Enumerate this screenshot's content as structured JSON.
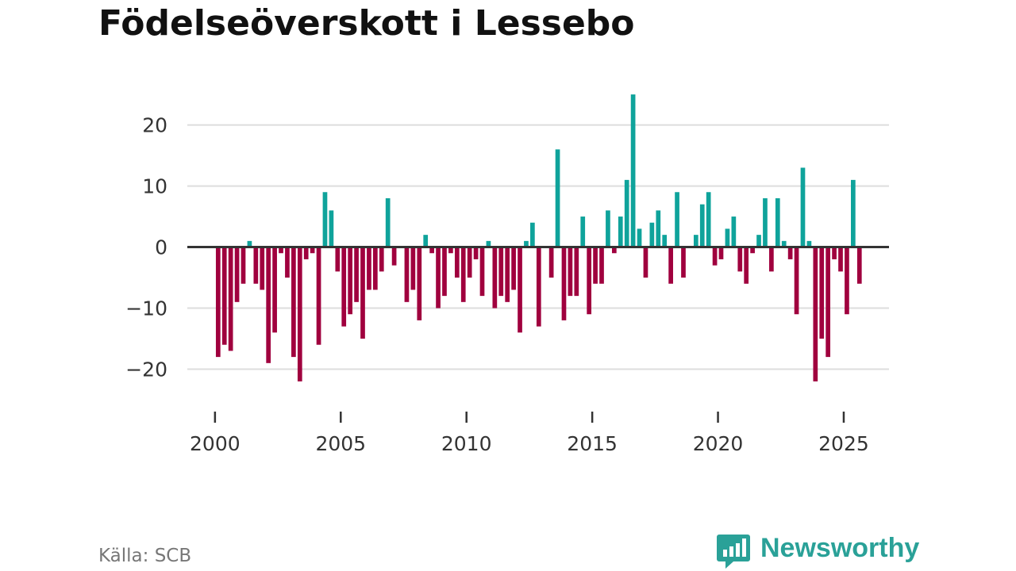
{
  "title": "Födelseöverskott i Lessebo",
  "source": "Källa: SCB",
  "brand": {
    "name": "Newsworthy",
    "icon": "newsworthy-logo-icon",
    "color": "#2aa198"
  },
  "colors": {
    "positive": "#0fa39b",
    "negative": "#a0003e",
    "zero_line": "#333333",
    "grid": "#dddddd"
  },
  "chart_data": {
    "type": "bar",
    "title": "Födelseöverskott i Lessebo",
    "xlabel": "",
    "ylabel": "",
    "ylim": [
      -25,
      28
    ],
    "yticks": [
      20,
      10,
      0,
      -10,
      -20
    ],
    "ytick_labels": [
      "20",
      "10",
      "0",
      "−10",
      "−20"
    ],
    "xticks": [
      2000,
      2005,
      2010,
      2015,
      2020,
      2025
    ],
    "xtick_labels": [
      "2000",
      "2005",
      "2010",
      "2015",
      "2020",
      "2025"
    ],
    "xlim": [
      1998.9,
      2026.8
    ],
    "x_start": 2000.125,
    "x_step": 0.25,
    "grid": true,
    "legend": "none",
    "values": [
      -18,
      -16,
      -17,
      -9,
      -6,
      1,
      -6,
      -7,
      -19,
      -14,
      -1,
      -5,
      -18,
      -22,
      -2,
      -1,
      -16,
      9,
      6,
      -4,
      -13,
      -11,
      -9,
      -15,
      -7,
      -7,
      -4,
      8,
      -3,
      0,
      -9,
      -7,
      -12,
      2,
      -1,
      -10,
      -8,
      -1,
      -5,
      -9,
      -5,
      -2,
      -8,
      1,
      -10,
      -8,
      -9,
      -7,
      -14,
      1,
      4,
      -13,
      0,
      -5,
      16,
      -12,
      -8,
      -8,
      5,
      -11,
      -6,
      -6,
      6,
      -1,
      5,
      11,
      25,
      3,
      -5,
      4,
      6,
      2,
      -6,
      9,
      -5,
      0,
      2,
      7,
      9,
      -3,
      -2,
      3,
      5,
      -4,
      -6,
      -1,
      2,
      8,
      -4,
      8,
      1,
      -2,
      -11,
      13,
      1,
      -22,
      -15,
      -18,
      -2,
      -4,
      -11,
      11,
      -6
    ]
  }
}
